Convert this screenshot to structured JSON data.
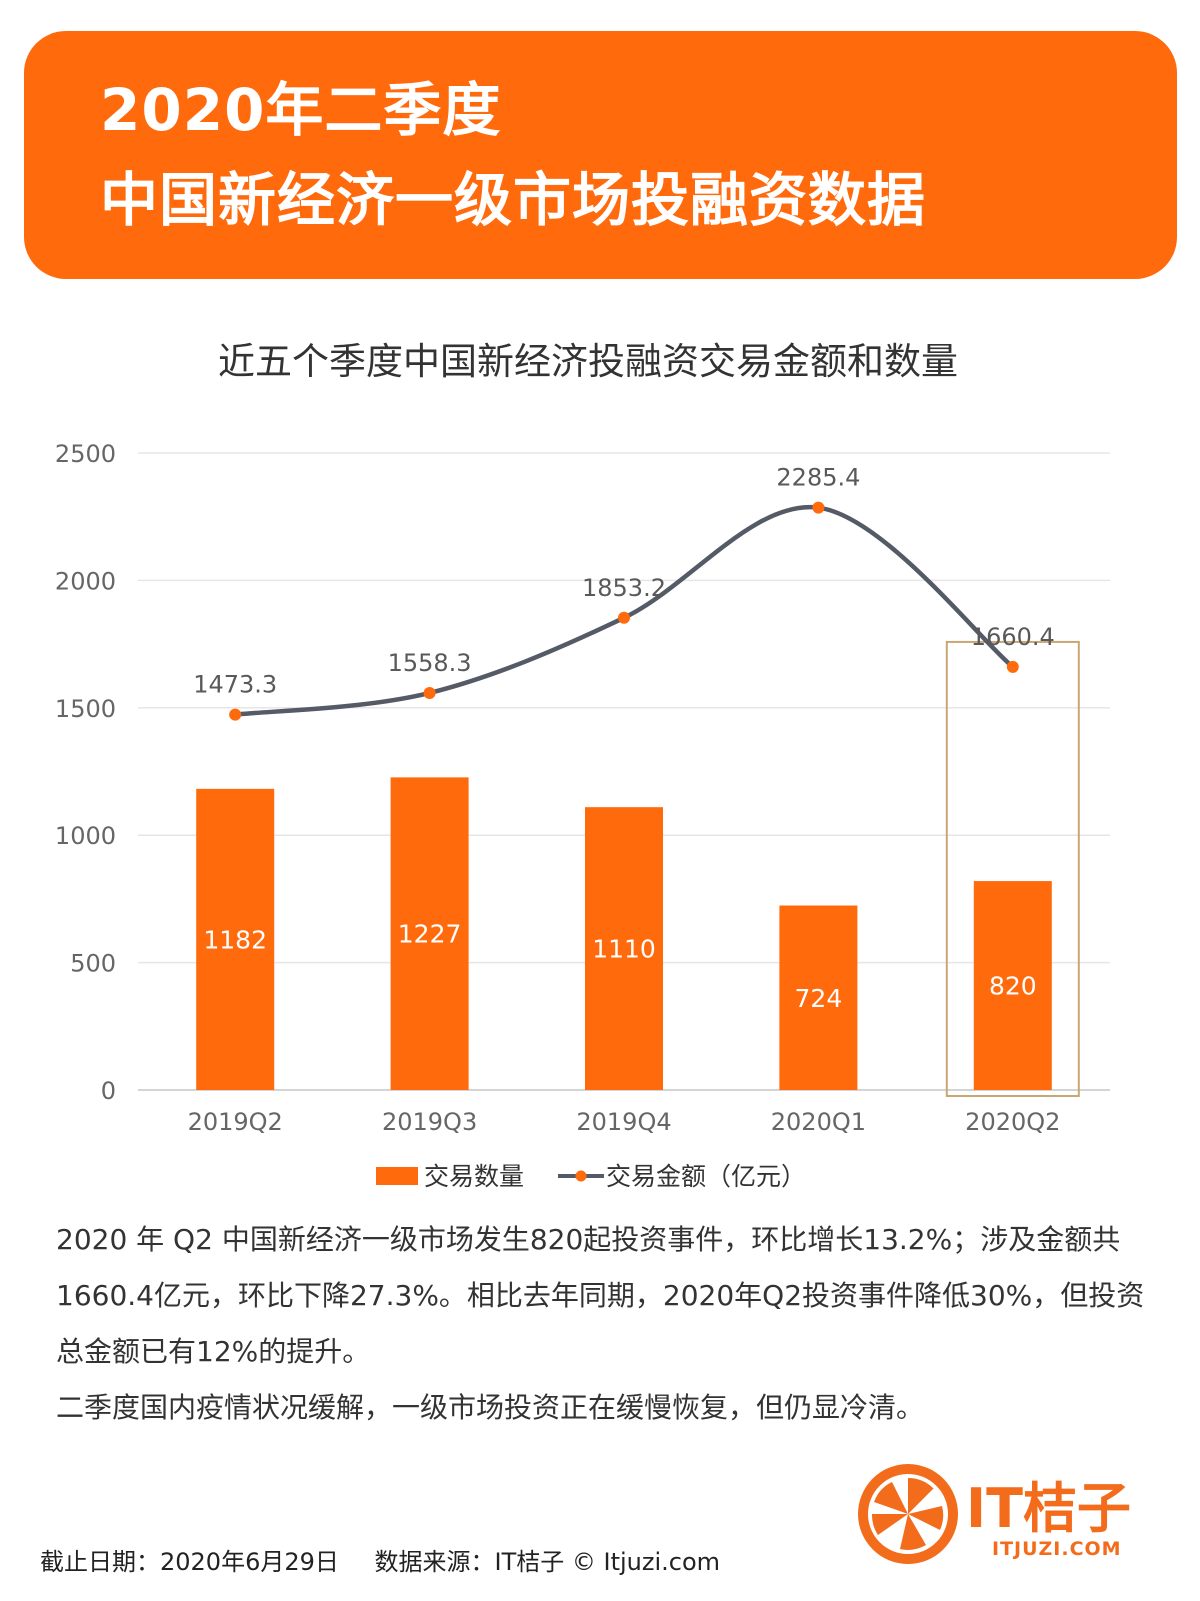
{
  "banner": {
    "line1": "2020年二季度",
    "line2": "中国新经济一级市场投融资数据"
  },
  "chart_data": {
    "type": "bar",
    "title": "近五个季度中国新经济投融资交易金额和数量",
    "categories": [
      "2019Q2",
      "2019Q3",
      "2019Q4",
      "2020Q1",
      "2020Q2"
    ],
    "series": [
      {
        "name": "交易数量",
        "type": "bar",
        "values": [
          1182,
          1227,
          1110,
          724,
          820
        ]
      },
      {
        "name": "交易金额（亿元）",
        "type": "line",
        "values": [
          1473.3,
          1558.3,
          1853.2,
          2285.4,
          1660.4
        ]
      }
    ],
    "value_labels": {
      "bars": [
        "1182",
        "1227",
        "1110",
        "724",
        "820"
      ],
      "line": [
        "1473.3",
        "1558.3",
        "1853.2",
        "2285.4",
        "1660.4"
      ]
    },
    "y_ticks": [
      "0",
      "500",
      "1000",
      "1500",
      "2000",
      "2500"
    ],
    "ylim": [
      0,
      2500
    ],
    "grid": true,
    "highlight_category": "2020Q2",
    "legend_position": "bottom",
    "colors": {
      "bar": "#ff6a0d",
      "line": "#555a67",
      "marker": "#ff6a0d",
      "highlight": "#c9a774"
    }
  },
  "paragraphs": [
    "2020 年 Q2 中国新经济一级市场发生820起投资事件，环比增长13.2%；涉及金额共1660.4亿元，环比下降27.3%。相比去年同期，2020年Q2投资事件降低30%，但投资总金额已有12%的提升。",
    "二季度国内疫情状况缓解，一级市场投资正在缓慢恢复，但仍显冷清。"
  ],
  "footer": {
    "date": "截止日期：2020年6月29日",
    "source": "数据来源：IT桔子 © Itjuzi.com"
  },
  "logo": {
    "text": "IT桔子",
    "sub": "ITJUZI.COM"
  }
}
